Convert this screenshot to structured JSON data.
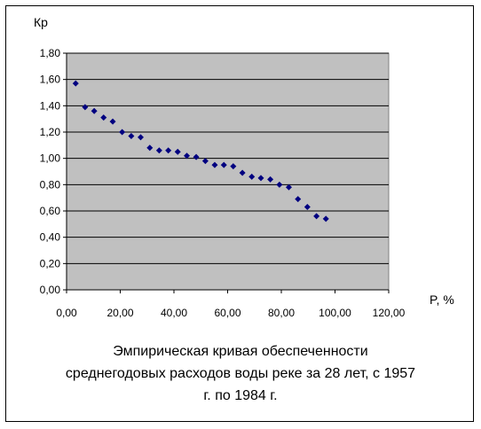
{
  "chart_data": {
    "type": "scatter",
    "title_lines": [
      "Эмпирическая кривая обеспеченности",
      "среднегодовых расходов воды реке за 28 лет, с 1957",
      "г. по 1984 г."
    ],
    "xlabel": "P, %",
    "ylabel": "Кр",
    "xlim": [
      0,
      120
    ],
    "ylim": [
      0,
      1.8
    ],
    "x_ticks": [
      "0,00",
      "20,00",
      "40,00",
      "60,00",
      "80,00",
      "100,00",
      "120,00"
    ],
    "y_ticks": [
      "0,00",
      "0,20",
      "0,40",
      "0,60",
      "0,80",
      "1,00",
      "1,20",
      "1,40",
      "1,60",
      "1,80"
    ],
    "grid": "horizontal",
    "plot_background": "#c0c0c0",
    "marker_color": "#000080",
    "marker": "diamond",
    "points": [
      {
        "x": 3.4,
        "y": 1.57
      },
      {
        "x": 6.9,
        "y": 1.39
      },
      {
        "x": 10.3,
        "y": 1.36
      },
      {
        "x": 13.8,
        "y": 1.31
      },
      {
        "x": 17.2,
        "y": 1.28
      },
      {
        "x": 20.7,
        "y": 1.2
      },
      {
        "x": 24.1,
        "y": 1.17
      },
      {
        "x": 27.6,
        "y": 1.16
      },
      {
        "x": 31.0,
        "y": 1.08
      },
      {
        "x": 34.5,
        "y": 1.06
      },
      {
        "x": 37.9,
        "y": 1.06
      },
      {
        "x": 41.4,
        "y": 1.05
      },
      {
        "x": 44.8,
        "y": 1.02
      },
      {
        "x": 48.3,
        "y": 1.01
      },
      {
        "x": 51.7,
        "y": 0.98
      },
      {
        "x": 55.2,
        "y": 0.95
      },
      {
        "x": 58.6,
        "y": 0.95
      },
      {
        "x": 62.1,
        "y": 0.94
      },
      {
        "x": 65.5,
        "y": 0.89
      },
      {
        "x": 69.0,
        "y": 0.86
      },
      {
        "x": 72.4,
        "y": 0.85
      },
      {
        "x": 75.9,
        "y": 0.84
      },
      {
        "x": 79.3,
        "y": 0.8
      },
      {
        "x": 82.8,
        "y": 0.78
      },
      {
        "x": 86.2,
        "y": 0.69
      },
      {
        "x": 89.7,
        "y": 0.63
      },
      {
        "x": 93.1,
        "y": 0.56
      },
      {
        "x": 96.6,
        "y": 0.54
      }
    ]
  }
}
